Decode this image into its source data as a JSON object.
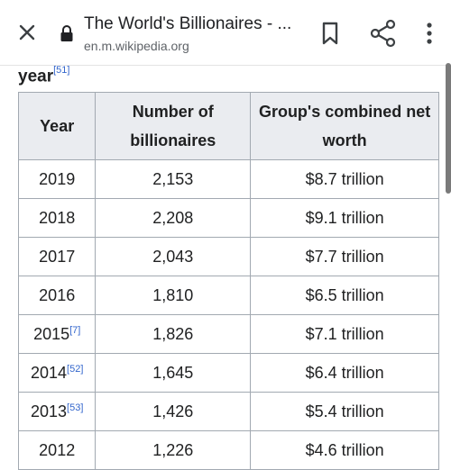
{
  "browser": {
    "page_title": "The World's Billionaires - ...",
    "url": "en.m.wikipedia.org",
    "icons": [
      "close-icon",
      "lock-icon",
      "bookmark-icon",
      "share-icon",
      "more-vert-icon"
    ]
  },
  "caption": {
    "text": "year",
    "ref": "[51]"
  },
  "table": {
    "headers": [
      "Year",
      "Number of billionaires",
      "Group's combined net worth"
    ],
    "rows": [
      {
        "year": "2019",
        "ref": "",
        "number": "2,153",
        "worth": "$8.7 trillion"
      },
      {
        "year": "2018",
        "ref": "",
        "number": "2,208",
        "worth": "$9.1 trillion"
      },
      {
        "year": "2017",
        "ref": "",
        "number": "2,043",
        "worth": "$7.7 trillion"
      },
      {
        "year": "2016",
        "ref": "",
        "number": "1,810",
        "worth": "$6.5 trillion"
      },
      {
        "year": "2015",
        "ref": "[7]",
        "number": "1,826",
        "worth": "$7.1 trillion"
      },
      {
        "year": "2014",
        "ref": "[52]",
        "number": "1,645",
        "worth": "$6.4 trillion"
      },
      {
        "year": "2013",
        "ref": "[53]",
        "number": "1,426",
        "worth": "$5.4 trillion"
      },
      {
        "year": "2012",
        "ref": "",
        "number": "1,226",
        "worth": "$4.6 trillion"
      }
    ]
  },
  "colors": {
    "link": "#3366cc",
    "header_bg": "#eaecf0",
    "border": "#a2a9b1"
  }
}
